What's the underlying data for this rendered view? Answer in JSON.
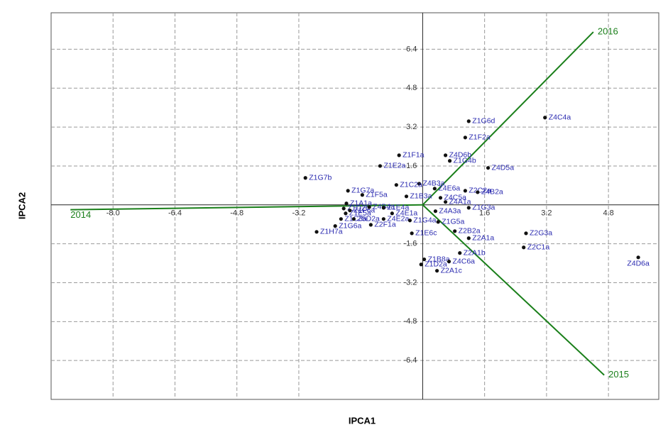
{
  "chart_data": {
    "type": "biplot",
    "x_label": "IPCA1",
    "y_label": "IPCA2",
    "xlim": [
      -9.6,
      6.1
    ],
    "ylim": [
      -8.0,
      7.9
    ],
    "xticks": [
      {
        "value": -8.0,
        "label": "-8.0"
      },
      -6.4,
      -4.8,
      -3.2,
      1.6,
      3.2,
      4.8
    ],
    "yticks": [
      6.4,
      4.8,
      3.2,
      1.6,
      -1.6,
      -3.2,
      -4.8,
      -6.4
    ],
    "grid": true,
    "point_color": "#111111",
    "label_color": "#2b2bb0",
    "vector_color": "#1a7f1a",
    "labels": [
      "Z4C4a",
      "Z1G6d",
      "Z1F2a",
      "Z4D6b",
      "Z1G4b",
      "Z4D5a",
      "Z1F1a",
      "Z1E2a",
      "Z1G7b",
      "Z4B3a",
      "Z1C2a",
      "Z1G7a",
      "Z1F5a",
      "Z4E6a",
      "Z2C2a",
      "Z4B2a",
      "Z4C5a",
      "Z1B3a",
      "Z1A1a",
      "Z1D2b",
      "Z1E5a",
      "Z1F6a",
      "Z1C3a",
      "Z5D2a",
      "Z1G6a",
      "Z1H7a",
      "Z2F1a",
      "Z4B4a",
      "Z1E4a",
      "Z4E2a",
      "Z4E1a",
      "Z1G4a",
      "Z4A1a",
      "Z4A3a",
      "Z1G3a",
      "Z1G5a",
      "Z2B2a",
      "Z1E6c",
      "Z2A1a",
      "Z2G3a",
      "Z2C1a",
      "Z4D6a",
      "Z2A1b",
      "Z1B8a",
      "Z1D2a",
      "Z4C6a",
      "Z2A1c"
    ],
    "x": [
      3.16,
      1.19,
      1.1,
      0.59,
      0.7,
      1.69,
      -0.61,
      -1.1,
      -3.03,
      -0.09,
      -0.68,
      -1.93,
      -1.56,
      0.31,
      1.1,
      1.42,
      0.46,
      -0.42,
      -1.97,
      -2.04,
      -1.99,
      -1.88,
      -2.11,
      -1.78,
      -2.26,
      -2.74,
      -1.34,
      -1.38,
      -1.01,
      -1.01,
      -0.79,
      -0.33,
      0.59,
      0.33,
      1.19,
      0.4,
      0.83,
      -0.28,
      1.19,
      2.67,
      2.61,
      5.57,
      0.96,
      0.04,
      -0.04,
      0.68,
      0.37
    ],
    "values": [
      3.59,
      3.44,
      2.77,
      2.04,
      1.81,
      1.52,
      2.04,
      1.6,
      1.11,
      0.87,
      0.82,
      0.58,
      0.41,
      0.67,
      0.58,
      0.52,
      0.29,
      0.35,
      0.06,
      -0.15,
      -0.35,
      -0.23,
      -0.58,
      -0.58,
      -0.87,
      -1.11,
      -0.82,
      -0.09,
      -0.12,
      -0.58,
      -0.35,
      -0.64,
      0.12,
      -0.26,
      -0.12,
      -0.7,
      -1.08,
      -1.17,
      -1.37,
      -1.17,
      -1.75,
      -2.16,
      -1.98,
      -2.24,
      -2.45,
      -2.33,
      -2.71
    ],
    "vectors": [
      {
        "name": "2014",
        "x": -9.1,
        "y": -0.2
      },
      {
        "name": "2015",
        "x": 4.69,
        "y": -7.0
      },
      {
        "name": "2016",
        "x": 4.41,
        "y": 7.11
      }
    ]
  }
}
